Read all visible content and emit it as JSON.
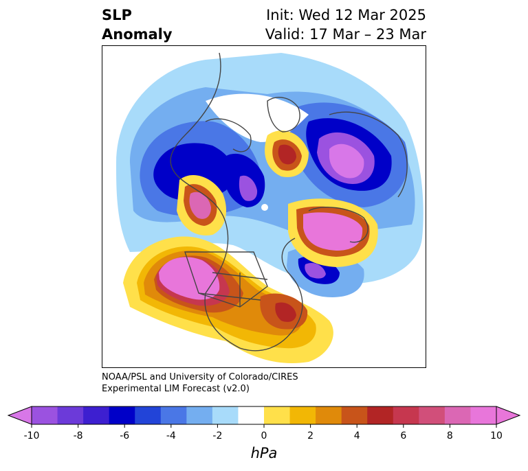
{
  "header": {
    "title_line1": "SLP",
    "title_line2": "Anomaly",
    "init_line": "Init: Wed 12 Mar 2025",
    "valid_line": "Valid: 17 Mar – 23 Mar"
  },
  "credit": {
    "line1": "NOAA/PSL and University of Colorado/CIRES",
    "line2": "Experimental LIM Forecast (v2.0)"
  },
  "colorbar": {
    "unit": "hPa",
    "tick_values": [
      -10,
      -8,
      -6,
      -4,
      -2,
      0,
      2,
      4,
      6,
      8,
      10
    ],
    "tick_labels": [
      "-10",
      "-8",
      "-6",
      "-4",
      "-2",
      "0",
      "2",
      "4",
      "6",
      "8",
      "10"
    ],
    "colors": [
      "#9b52e0",
      "#6c3ad9",
      "#3d1fd0",
      "#0000c8",
      "#2244d8",
      "#4a77e6",
      "#74aef0",
      "#a8dbfa",
      "#ffffff",
      "#ffe04a",
      "#f2b705",
      "#e08a0a",
      "#c8541a",
      "#b22525",
      "#c6374f",
      "#d14f7a",
      "#db67b4",
      "#e876da"
    ],
    "extend_low_color": "#d877e8",
    "extend_high_color": "#e876da"
  },
  "map": {
    "projection": "north-polar-stereographic",
    "field": "sea level pressure anomaly"
  }
}
